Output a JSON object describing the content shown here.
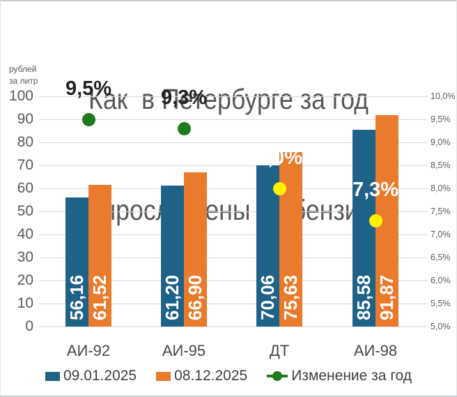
{
  "title": {
    "line1": "Как  в Петербурге за год",
    "line2": "выросли цены на бензин"
  },
  "y_axis_unit": {
    "line1": "рублей",
    "line2": "за литр"
  },
  "chart_data": {
    "type": "bar",
    "title": "Как в Петербурге за год выросли цены на бензин",
    "categories": [
      "АИ-92",
      "АИ-95",
      "ДТ",
      "АИ-98"
    ],
    "series": [
      {
        "name": "09.01.2025",
        "color": "#1F6287",
        "values": [
          56.16,
          61.2,
          70.06,
          85.58
        ],
        "value_labels": [
          "56,16",
          "61,20",
          "70,06",
          "85,58"
        ]
      },
      {
        "name": "08.12.2025",
        "color": "#EB7B2C",
        "values": [
          61.52,
          66.9,
          75.63,
          91.87
        ],
        "value_labels": [
          "61,52",
          "66,90",
          "75,63",
          "91,87"
        ]
      }
    ],
    "change_series": {
      "name": "Изменение за год",
      "values_pct": [
        9.5,
        9.3,
        8.0,
        7.3
      ],
      "value_labels": [
        "9,5%",
        "9,3%",
        "8,0%",
        "7,3%"
      ],
      "dot_colors": [
        "#1F7A1F",
        "#1F7A1F",
        "#FFF000",
        "#FFF000"
      ],
      "label_colors": [
        "#212121",
        "#212121",
        "#FFFFFF",
        "#FFFFFF"
      ],
      "line_color": "#1F7A1F"
    },
    "left_axis": {
      "title": "рублей за литр",
      "min": 0,
      "max": 100,
      "step": 10,
      "tick_labels": [
        "0",
        "10",
        "20",
        "30",
        "40",
        "50",
        "60",
        "70",
        "80",
        "90",
        "100"
      ]
    },
    "right_axis": {
      "min": 5.0,
      "max": 10.0,
      "step": 0.5,
      "tick_labels": [
        "5,0%",
        "5,5%",
        "6,0%",
        "6,5%",
        "7,0%",
        "7,5%",
        "8,0%",
        "8,5%",
        "9,0%",
        "9,5%",
        "10,0%"
      ]
    },
    "grid": true,
    "legend_position": "bottom"
  },
  "legend": {
    "items": [
      {
        "label": "09.01.2025",
        "swatch": "square",
        "color": "#1F6287"
      },
      {
        "label": "08.12.2025",
        "swatch": "square",
        "color": "#EB7B2C"
      },
      {
        "label": "Изменение за год",
        "swatch": "line-dot",
        "color": "#1F7A1F"
      }
    ]
  },
  "colors": {
    "background": "#FFFFFF",
    "gridline": "#D9D9D9",
    "axis_text": "#595959",
    "category_text": "#474747",
    "title_text": "#54585B",
    "border": "#C9CCCE"
  }
}
